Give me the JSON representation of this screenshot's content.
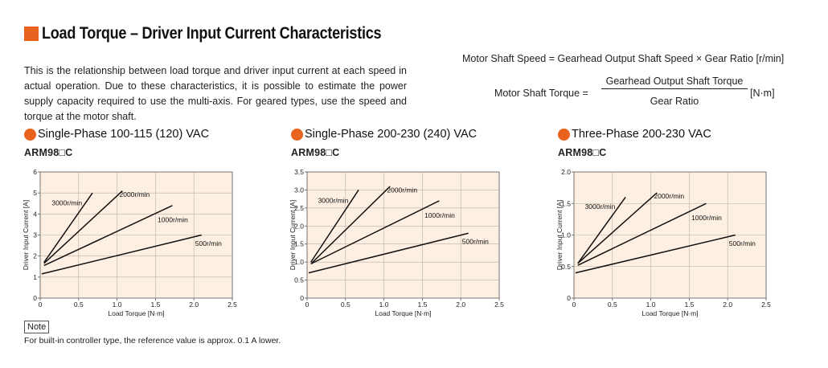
{
  "title": "Load Torque – Driver Input Current Characteristics",
  "intro": "This is the relationship between load torque and driver input current at each speed in actual operation. Due to these characteristics, it is possible to estimate the power supply capacity required to use the multi-axis. For geared types, use the speed and torque at the motor shaft.",
  "equations": {
    "speed": "Motor Shaft Speed = Gearhead Output Shaft Speed × Gear Ratio [r/min]",
    "torque_lhs": "Motor Shaft Torque =",
    "torque_num": "Gearhead Output Shaft Torque",
    "torque_den": "Gear Ratio",
    "torque_unit": "[N·m]"
  },
  "colors": {
    "accent": "#e8641e",
    "plot_bg": "#fdf0e2",
    "grid": "#b8b0a6",
    "line": "#111111"
  },
  "chart_data": [
    {
      "type": "line",
      "subtitle": "Single-Phase 100-115 (120) VAC",
      "model": "ARM98□C",
      "xlabel": "Load Torque [N·m]",
      "ylabel": "Driver Input Current [A]",
      "xlim": [
        0,
        2.5
      ],
      "ylim": [
        0,
        6
      ],
      "xticks": [
        0,
        0.5,
        1.0,
        1.5,
        2.0,
        2.5
      ],
      "xtick_labels": [
        "0",
        "0.5",
        "1.0",
        "1.5",
        "2.0",
        "2.5"
      ],
      "yticks": [
        0,
        1,
        2,
        3,
        4,
        5,
        6
      ],
      "ytick_labels": [
        "0",
        "1",
        "2",
        "3",
        "4",
        "5",
        "6"
      ],
      "grid": true,
      "series": [
        {
          "name": "3000r/min",
          "x": [
            0.05,
            0.68
          ],
          "y": [
            1.7,
            5.0
          ]
        },
        {
          "name": "2000r/min",
          "x": [
            0.05,
            1.07
          ],
          "y": [
            1.65,
            5.1
          ]
        },
        {
          "name": "1000r/min",
          "x": [
            0.05,
            1.72
          ],
          "y": [
            1.55,
            4.4
          ]
        },
        {
          "name": "500r/min",
          "x": [
            0.02,
            2.1
          ],
          "y": [
            1.15,
            3.0
          ]
        }
      ]
    },
    {
      "type": "line",
      "subtitle": "Single-Phase 200-230 (240) VAC",
      "model": "ARM98□C",
      "xlabel": "Load Torque [N·m]",
      "ylabel": "Driver Input Current [A]",
      "xlim": [
        0,
        2.5
      ],
      "ylim": [
        0,
        3.5
      ],
      "xticks": [
        0,
        0.5,
        1.0,
        1.5,
        2.0,
        2.5
      ],
      "xtick_labels": [
        "0",
        "0.5",
        "1.0",
        "1.5",
        "2.0",
        "2.5"
      ],
      "yticks": [
        0,
        0.5,
        1.0,
        1.5,
        2.0,
        2.5,
        3.0,
        3.5
      ],
      "ytick_labels": [
        "0",
        "0.5",
        "1.0",
        "1.5",
        "2.0",
        "2.5",
        "3.0",
        "3.5"
      ],
      "grid": true,
      "series": [
        {
          "name": "3000r/min",
          "x": [
            0.05,
            0.67
          ],
          "y": [
            1.0,
            3.0
          ]
        },
        {
          "name": "2000r/min",
          "x": [
            0.05,
            1.08
          ],
          "y": [
            0.95,
            3.1
          ]
        },
        {
          "name": "1000r/min",
          "x": [
            0.05,
            1.72
          ],
          "y": [
            0.95,
            2.7
          ]
        },
        {
          "name": "500r/min",
          "x": [
            0.02,
            2.1
          ],
          "y": [
            0.7,
            1.8
          ]
        }
      ]
    },
    {
      "type": "line",
      "subtitle": "Three-Phase 200-230 VAC",
      "model": "ARM98□C",
      "xlabel": "Load Torque [N·m]",
      "ylabel": "Driver Input Current [A]",
      "xlim": [
        0,
        2.5
      ],
      "ylim": [
        0,
        2.0
      ],
      "xticks": [
        0,
        0.5,
        1.0,
        1.5,
        2.0,
        2.5
      ],
      "xtick_labels": [
        "0",
        "0.5",
        "1.0",
        "1.5",
        "2.0",
        "2.5"
      ],
      "yticks": [
        0,
        0.5,
        1.0,
        1.5,
        2.0
      ],
      "ytick_labels": [
        "0",
        "0.5",
        "1.0",
        "1.5",
        "2.0"
      ],
      "grid": true,
      "series": [
        {
          "name": "3000r/min",
          "x": [
            0.05,
            0.67
          ],
          "y": [
            0.55,
            1.6
          ]
        },
        {
          "name": "2000r/min",
          "x": [
            0.05,
            1.08
          ],
          "y": [
            0.55,
            1.67
          ]
        },
        {
          "name": "1000r/min",
          "x": [
            0.05,
            1.72
          ],
          "y": [
            0.52,
            1.5
          ]
        },
        {
          "name": "500r/min",
          "x": [
            0.02,
            2.1
          ],
          "y": [
            0.4,
            1.0
          ]
        }
      ]
    }
  ],
  "note": {
    "label": "Note",
    "text": "For built-in controller type, the reference value is approx. 0.1 A lower."
  }
}
